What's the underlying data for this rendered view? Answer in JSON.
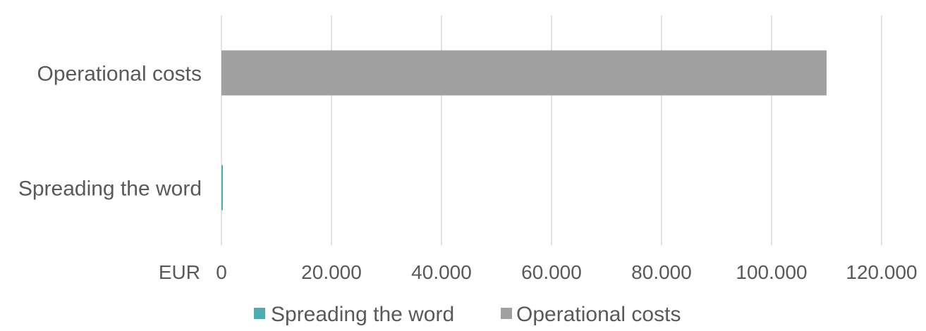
{
  "chart_data": {
    "type": "bar",
    "orientation": "horizontal",
    "unit_label": "EUR",
    "categories": [
      "Spreading the word",
      "Operational costs"
    ],
    "series": [
      {
        "name": "Spreading the word",
        "color": "#4BACB1",
        "values": [
          250,
          null
        ]
      },
      {
        "name": "Operational costs",
        "color": "#A0A0A0",
        "values": [
          null,
          110000
        ]
      }
    ],
    "xlim": [
      0,
      120000
    ],
    "xticks": [
      0,
      20000,
      40000,
      60000,
      80000,
      100000,
      120000
    ],
    "xtick_labels": [
      "0",
      "20.000",
      "40.000",
      "60.000",
      "80.000",
      "100.000",
      "120.000"
    ],
    "grid": "vertical",
    "legend_position": "bottom"
  }
}
